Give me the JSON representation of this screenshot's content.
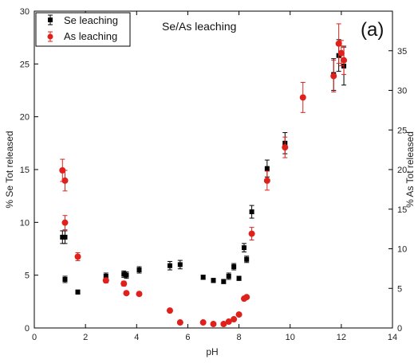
{
  "chart_data": {
    "type": "scatter",
    "title": "Se/As leaching",
    "panel_label": "(a)",
    "xlabel": "pH",
    "ylabel_left": "% Se Tot released",
    "ylabel_right": "% As Tot released",
    "xlim": [
      0,
      14
    ],
    "ylim_left": [
      0,
      30
    ],
    "ylim_right": [
      0,
      40
    ],
    "x_ticks": [
      "0",
      "2",
      "4",
      "6",
      "8",
      "10",
      "12",
      "14"
    ],
    "y_left_ticks": [
      "0",
      "5",
      "10",
      "15",
      "20",
      "25",
      "30"
    ],
    "y_right_ticks": [
      "0",
      "5",
      "10",
      "15",
      "20",
      "25",
      "30",
      "35"
    ],
    "legend_position": "top-left",
    "series": [
      {
        "name": "Se leaching",
        "axis": "left",
        "color": "#000000",
        "marker": "square",
        "points": [
          {
            "x": 1.1,
            "y": 8.6,
            "err": 0.6
          },
          {
            "x": 1.2,
            "y": 8.6,
            "err": 0.6
          },
          {
            "x": 1.2,
            "y": 4.6,
            "err": 0.3
          },
          {
            "x": 1.7,
            "y": 3.4,
            "err": 0.2
          },
          {
            "x": 2.8,
            "y": 4.9,
            "err": 0.3
          },
          {
            "x": 3.5,
            "y": 5.1,
            "err": 0.3
          },
          {
            "x": 3.6,
            "y": 5.0,
            "err": 0.3
          },
          {
            "x": 4.1,
            "y": 5.5,
            "err": 0.3
          },
          {
            "x": 5.3,
            "y": 5.9,
            "err": 0.4
          },
          {
            "x": 5.7,
            "y": 6.0,
            "err": 0.4
          },
          {
            "x": 6.6,
            "y": 4.8,
            "err": 0.2
          },
          {
            "x": 7.0,
            "y": 4.5,
            "err": 0.2
          },
          {
            "x": 7.4,
            "y": 4.4,
            "err": 0.2
          },
          {
            "x": 7.6,
            "y": 4.9,
            "err": 0.3
          },
          {
            "x": 7.8,
            "y": 5.8,
            "err": 0.3
          },
          {
            "x": 8.0,
            "y": 4.7,
            "err": 0.2
          },
          {
            "x": 8.2,
            "y": 7.6,
            "err": 0.4
          },
          {
            "x": 8.3,
            "y": 6.5,
            "err": 0.3
          },
          {
            "x": 8.5,
            "y": 11.0,
            "err": 0.6
          },
          {
            "x": 9.1,
            "y": 15.1,
            "err": 0.8
          },
          {
            "x": 9.8,
            "y": 17.5,
            "err": 1.0
          },
          {
            "x": 11.7,
            "y": 24.0,
            "err": 1.5
          },
          {
            "x": 11.9,
            "y": 25.8,
            "err": 1.5
          },
          {
            "x": 12.1,
            "y": 24.8,
            "err": 1.8
          }
        ]
      },
      {
        "name": "As leaching",
        "axis": "right",
        "color": "#e0201b",
        "marker": "circle",
        "points": [
          {
            "x": 1.1,
            "y": 19.9,
            "err": 1.4
          },
          {
            "x": 1.2,
            "y": 18.6,
            "err": 1.3
          },
          {
            "x": 1.2,
            "y": 13.3,
            "err": 0.9
          },
          {
            "x": 1.7,
            "y": 9.0,
            "err": 0.5
          },
          {
            "x": 2.8,
            "y": 6.0,
            "err": 0.3
          },
          {
            "x": 3.5,
            "y": 5.6,
            "err": 0.3
          },
          {
            "x": 3.6,
            "y": 4.4,
            "err": 0.2
          },
          {
            "x": 4.1,
            "y": 4.3,
            "err": 0.2
          },
          {
            "x": 5.3,
            "y": 2.2,
            "err": 0.1
          },
          {
            "x": 5.7,
            "y": 0.7,
            "err": 0.1
          },
          {
            "x": 6.6,
            "y": 0.7,
            "err": 0.1
          },
          {
            "x": 7.0,
            "y": 0.5,
            "err": 0.1
          },
          {
            "x": 7.4,
            "y": 0.5,
            "err": 0.1
          },
          {
            "x": 7.6,
            "y": 0.8,
            "err": 0.1
          },
          {
            "x": 7.8,
            "y": 1.1,
            "err": 0.1
          },
          {
            "x": 8.0,
            "y": 1.7,
            "err": 0.1
          },
          {
            "x": 8.2,
            "y": 3.7,
            "err": 0.2
          },
          {
            "x": 8.3,
            "y": 3.9,
            "err": 0.2
          },
          {
            "x": 8.5,
            "y": 11.9,
            "err": 0.8
          },
          {
            "x": 9.1,
            "y": 18.6,
            "err": 1.2
          },
          {
            "x": 9.8,
            "y": 22.8,
            "err": 1.3
          },
          {
            "x": 10.5,
            "y": 29.1,
            "err": 1.9
          },
          {
            "x": 11.7,
            "y": 31.8,
            "err": 2.0
          },
          {
            "x": 11.9,
            "y": 35.9,
            "err": 2.5
          },
          {
            "x": 12.0,
            "y": 34.7,
            "err": 1.6
          },
          {
            "x": 12.1,
            "y": 33.8,
            "err": 1.8
          }
        ]
      }
    ]
  }
}
